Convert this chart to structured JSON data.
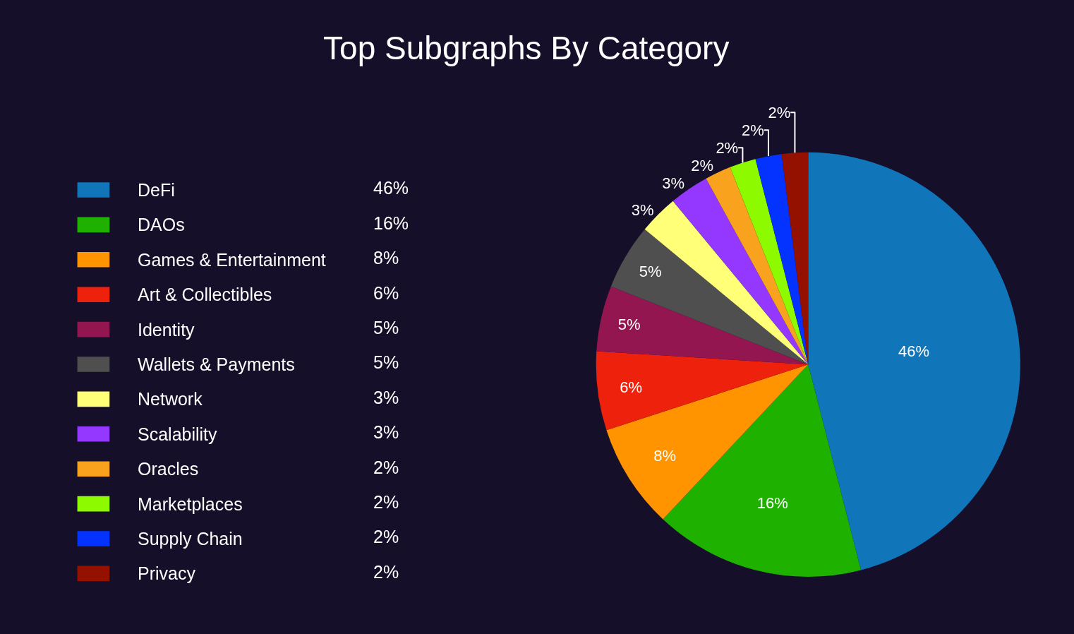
{
  "chart_data": {
    "type": "pie",
    "title": "Top Subgraphs By Category",
    "categories": [
      "DeFi",
      "DAOs",
      "Games & Entertainment",
      "Art & Collectibles",
      "Identity",
      "Wallets & Payments",
      "Network",
      "Scalability",
      "Oracles",
      "Marketplaces",
      "Supply Chain",
      "Privacy"
    ],
    "values": [
      46,
      16,
      8,
      6,
      5,
      5,
      3,
      3,
      2,
      2,
      2,
      2
    ],
    "value_labels": [
      "46%",
      "16%",
      "8%",
      "6%",
      "5%",
      "5%",
      "3%",
      "3%",
      "2%",
      "2%",
      "2%",
      "2%"
    ],
    "colors": [
      "#1175b9",
      "#1fb100",
      "#ff9300",
      "#ee220c",
      "#941651",
      "#4f4f4f",
      "#ffff78",
      "#9437ff",
      "#f8a21e",
      "#8efa00",
      "#0433ff",
      "#941100"
    ],
    "legend": "left"
  }
}
